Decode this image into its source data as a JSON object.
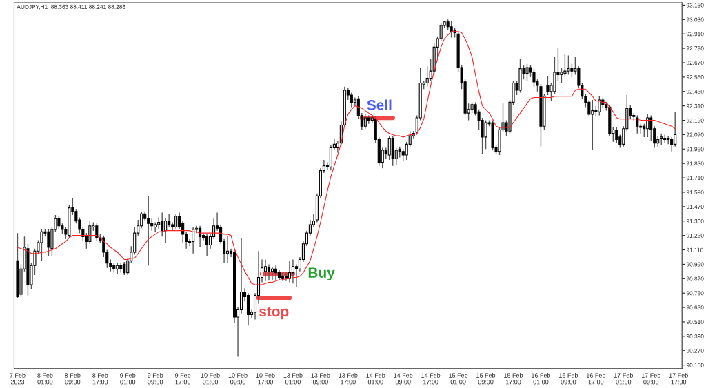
{
  "chart_data": {
    "type": "candlestick",
    "title": "AUDJPY,H1  88.363 88.411 88.241 88.286",
    "categories": [
      "7 Feb 2023",
      null,
      null,
      null,
      null,
      null,
      null,
      null,
      "8 Feb 01:00",
      null,
      null,
      null,
      null,
      null,
      null,
      null,
      "8 Feb 09:00",
      null,
      null,
      null,
      null,
      null,
      null,
      null,
      "8 Feb 17:00",
      null,
      null,
      null,
      null,
      null,
      null,
      null,
      "9 Feb 01:00",
      null,
      null,
      null,
      null,
      null,
      null,
      null,
      "9 Feb 09:00",
      null,
      null,
      null,
      null,
      null,
      null,
      null,
      "9 Feb 17:00",
      null,
      null,
      null,
      null,
      null,
      null,
      null,
      "10 Feb 01:00",
      null,
      null,
      null,
      null,
      null,
      null,
      null,
      "10 Feb 09:00",
      null,
      null,
      null,
      null,
      null,
      null,
      null,
      "10 Feb 17:00",
      null,
      null,
      null,
      null,
      null,
      null,
      null,
      "13 Feb 01:00",
      null,
      null,
      null,
      null,
      null,
      null,
      null,
      "13 Feb 09:00",
      null,
      null,
      null,
      null,
      null,
      null,
      null,
      "13 Feb 17:00",
      null,
      null,
      null,
      null,
      null,
      null,
      null,
      "14 Feb 01:00",
      null,
      null,
      null,
      null,
      null,
      null,
      null,
      "14 Feb 09:00",
      null,
      null,
      null,
      null,
      null,
      null,
      null,
      "14 Feb 17:00",
      null,
      null,
      null,
      null,
      null,
      null,
      null,
      "15 Feb 01:00",
      null,
      null,
      null,
      null,
      null,
      null,
      null,
      "15 Feb 09:00",
      null,
      null,
      null,
      null,
      null,
      null,
      null,
      "15 Feb 17:00",
      null,
      null,
      null,
      null,
      null,
      null,
      null,
      "16 Feb 01:00",
      null,
      null,
      null,
      null,
      null,
      null,
      null,
      "16 Feb 09:00",
      null,
      null,
      null,
      null,
      null,
      null,
      null,
      "16 Feb 17:00",
      null,
      null,
      null,
      null,
      null,
      null,
      null,
      "17 Feb 01:00",
      null,
      null,
      null,
      null,
      null,
      null,
      null,
      "17 Feb 09:00",
      null,
      null,
      null,
      null,
      null,
      null,
      null,
      "17 Feb 17:00"
    ],
    "ohlc": [
      [
        91.02,
        91.25,
        90.71,
        90.72
      ],
      [
        90.74,
        90.99,
        90.72,
        90.95
      ],
      [
        90.95,
        91.22,
        90.93,
        91.13
      ],
      [
        91.12,
        91.16,
        90.73,
        90.82
      ],
      [
        90.82,
        91.0,
        90.78,
        90.98
      ],
      [
        90.98,
        91.12,
        90.9,
        91.1
      ],
      [
        91.1,
        91.19,
        91.08,
        91.17
      ],
      [
        91.17,
        91.28,
        91.02,
        91.26
      ],
      [
        91.26,
        91.28,
        91.22,
        91.25
      ],
      [
        91.26,
        91.28,
        91.06,
        91.13
      ],
      [
        91.12,
        91.3,
        91.06,
        91.28
      ],
      [
        91.28,
        91.4,
        91.26,
        91.37
      ],
      [
        91.37,
        91.39,
        91.28,
        91.31
      ],
      [
        91.31,
        91.33,
        91.24,
        91.28
      ],
      [
        91.28,
        91.3,
        91.2,
        91.24
      ],
      [
        91.23,
        91.48,
        91.21,
        91.46
      ],
      [
        91.46,
        91.54,
        91.4,
        91.43
      ],
      [
        91.43,
        91.45,
        91.33,
        91.35
      ],
      [
        91.36,
        91.38,
        91.25,
        91.28
      ],
      [
        91.28,
        91.3,
        91.18,
        91.22
      ],
      [
        91.23,
        91.25,
        91.12,
        91.18
      ],
      [
        91.18,
        91.35,
        91.16,
        91.31
      ],
      [
        91.3,
        91.34,
        91.27,
        91.31
      ],
      [
        91.31,
        91.33,
        91.18,
        91.21
      ],
      [
        91.21,
        91.24,
        91.17,
        91.19
      ],
      [
        91.21,
        91.23,
        91.05,
        91.09
      ],
      [
        91.09,
        91.11,
        90.96,
        91.0
      ],
      [
        91.0,
        91.03,
        90.93,
        90.97
      ],
      [
        90.98,
        91.0,
        90.92,
        90.95
      ],
      [
        90.95,
        91.0,
        90.91,
        90.98
      ],
      [
        90.98,
        91.0,
        90.92,
        90.95
      ],
      [
        90.99,
        91.01,
        90.9,
        90.92
      ],
      [
        90.92,
        91.04,
        90.9,
        91.02
      ],
      [
        91.02,
        91.14,
        91.0,
        91.09
      ],
      [
        91.09,
        91.3,
        91.07,
        91.25
      ],
      [
        91.25,
        91.36,
        91.23,
        91.31
      ],
      [
        91.31,
        91.43,
        91.29,
        91.41
      ],
      [
        91.41,
        91.43,
        91.35,
        91.37
      ],
      [
        91.37,
        91.56,
        90.98,
        91.33
      ],
      [
        91.33,
        91.37,
        91.27,
        91.31
      ],
      [
        91.3,
        91.34,
        91.26,
        91.32
      ],
      [
        91.32,
        91.38,
        91.28,
        91.34
      ],
      [
        91.35,
        91.42,
        91.22,
        91.27
      ],
      [
        91.27,
        91.37,
        91.17,
        91.35
      ],
      [
        91.35,
        91.41,
        91.3,
        91.32
      ],
      [
        91.32,
        91.34,
        91.27,
        91.3
      ],
      [
        91.3,
        91.41,
        91.28,
        91.39
      ],
      [
        91.39,
        91.42,
        91.28,
        91.3
      ],
      [
        91.33,
        91.35,
        91.17,
        91.24
      ],
      [
        91.24,
        91.26,
        91.12,
        91.18
      ],
      [
        91.18,
        91.2,
        91.14,
        91.17
      ],
      [
        91.18,
        91.3,
        91.08,
        91.28
      ],
      [
        91.28,
        91.31,
        91.25,
        91.29
      ],
      [
        91.29,
        91.31,
        91.13,
        91.22
      ],
      [
        91.23,
        91.25,
        91.19,
        91.21
      ],
      [
        91.22,
        91.24,
        91.06,
        91.15
      ],
      [
        91.15,
        91.24,
        91.12,
        91.22
      ],
      [
        91.22,
        91.37,
        91.2,
        91.31
      ],
      [
        91.31,
        91.42,
        91.27,
        91.29
      ],
      [
        91.3,
        91.32,
        91.16,
        91.18
      ],
      [
        91.18,
        91.2,
        91.0,
        91.08
      ],
      [
        91.08,
        91.23,
        91.0,
        91.1
      ],
      [
        91.1,
        91.12,
        91.05,
        91.08
      ],
      [
        91.09,
        91.11,
        90.5,
        90.55
      ],
      [
        90.55,
        90.63,
        90.22,
        90.61
      ],
      [
        90.61,
        91.21,
        90.58,
        90.76
      ],
      [
        90.76,
        90.79,
        90.68,
        90.72
      ],
      [
        90.73,
        90.75,
        90.48,
        90.57
      ],
      [
        90.57,
        90.61,
        90.54,
        90.59
      ],
      [
        90.59,
        90.75,
        90.53,
        90.73
      ],
      [
        90.73,
        91.1,
        90.66,
        90.88
      ],
      [
        90.88,
        91.03,
        90.84,
        90.96
      ],
      [
        90.93,
        91.03,
        90.85,
        90.97
      ],
      [
        90.96,
        90.99,
        90.86,
        90.93
      ],
      [
        90.93,
        90.97,
        90.86,
        90.95
      ],
      [
        90.95,
        90.98,
        90.86,
        90.92
      ],
      [
        90.92,
        90.94,
        90.86,
        90.88
      ],
      [
        90.89,
        90.92,
        90.85,
        90.87
      ],
      [
        90.89,
        90.92,
        90.85,
        90.87
      ],
      [
        90.87,
        91.02,
        90.84,
        90.92
      ],
      [
        90.92,
        91.03,
        90.83,
        90.97
      ],
      [
        90.97,
        90.99,
        90.8,
        90.95
      ],
      [
        90.95,
        91.05,
        90.93,
        91.03
      ],
      [
        91.03,
        91.18,
        91.01,
        91.16
      ],
      [
        91.16,
        91.27,
        91.14,
        91.25
      ],
      [
        91.25,
        91.36,
        91.23,
        91.32
      ],
      [
        91.32,
        91.41,
        91.3,
        91.35
      ],
      [
        91.36,
        91.58,
        91.34,
        91.56
      ],
      [
        91.56,
        91.79,
        91.54,
        91.77
      ],
      [
        91.77,
        91.86,
        91.75,
        91.81
      ],
      [
        91.81,
        91.84,
        91.78,
        91.8
      ],
      [
        91.8,
        91.98,
        91.78,
        91.96
      ],
      [
        91.96,
        92.04,
        91.94,
        91.99
      ],
      [
        91.96,
        92.02,
        91.92,
        92.0
      ],
      [
        92.0,
        92.18,
        91.98,
        92.15
      ],
      [
        92.15,
        92.47,
        92.13,
        92.44
      ],
      [
        92.44,
        92.46,
        92.36,
        92.4
      ],
      [
        92.4,
        92.42,
        92.3,
        92.34
      ],
      [
        92.34,
        92.38,
        92.31,
        92.36
      ],
      [
        92.37,
        92.39,
        92.2,
        92.23
      ],
      [
        92.23,
        92.25,
        92.11,
        92.14
      ],
      [
        92.14,
        92.24,
        92.12,
        92.21
      ],
      [
        92.21,
        92.23,
        92.16,
        92.19
      ],
      [
        92.19,
        92.23,
        92.17,
        92.21
      ],
      [
        92.2,
        92.22,
        92.0,
        92.03
      ],
      [
        92.03,
        92.05,
        91.81,
        91.84
      ],
      [
        91.84,
        91.96,
        91.79,
        91.94
      ],
      [
        91.94,
        91.96,
        91.87,
        91.91
      ],
      [
        91.9,
        92.06,
        91.86,
        92.04
      ],
      [
        92.04,
        92.06,
        91.81,
        91.87
      ],
      [
        91.87,
        91.96,
        91.82,
        91.94
      ],
      [
        91.95,
        91.97,
        91.88,
        91.93
      ],
      [
        91.93,
        91.95,
        91.85,
        91.9
      ],
      [
        91.9,
        92.01,
        91.86,
        91.99
      ],
      [
        91.99,
        92.1,
        91.97,
        92.06
      ],
      [
        92.06,
        92.1,
        92.04,
        92.08
      ],
      [
        92.09,
        92.23,
        92.07,
        92.21
      ],
      [
        92.21,
        92.63,
        92.19,
        92.5
      ],
      [
        92.49,
        92.52,
        92.45,
        92.5
      ],
      [
        92.5,
        92.64,
        92.47,
        92.54
      ],
      [
        92.54,
        92.7,
        92.52,
        92.6
      ],
      [
        92.6,
        92.83,
        92.58,
        92.8
      ],
      [
        92.8,
        92.89,
        92.7,
        92.87
      ],
      [
        92.87,
        93.0,
        92.85,
        92.98
      ],
      [
        92.98,
        93.02,
        92.96,
        93.01
      ],
      [
        93.01,
        93.03,
        92.94,
        92.97
      ],
      [
        92.97,
        93.02,
        92.88,
        92.93
      ],
      [
        92.94,
        92.96,
        92.88,
        92.92
      ],
      [
        92.91,
        92.93,
        92.59,
        92.63
      ],
      [
        92.63,
        92.65,
        92.45,
        92.5
      ],
      [
        92.51,
        92.53,
        92.23,
        92.25
      ],
      [
        92.25,
        92.33,
        92.19,
        92.28
      ],
      [
        92.28,
        92.34,
        92.25,
        92.32
      ],
      [
        92.32,
        92.34,
        92.23,
        92.25
      ],
      [
        92.26,
        92.28,
        92.11,
        92.19
      ],
      [
        92.19,
        92.21,
        91.91,
        92.05
      ],
      [
        92.05,
        92.19,
        91.95,
        92.17
      ],
      [
        92.17,
        92.19,
        92.14,
        92.16
      ],
      [
        92.17,
        92.19,
        91.94,
        91.96
      ],
      [
        91.96,
        91.98,
        91.91,
        91.93
      ],
      [
        91.93,
        92.13,
        91.9,
        92.11
      ],
      [
        92.11,
        92.33,
        92.09,
        92.17
      ],
      [
        92.17,
        92.19,
        92.06,
        92.1
      ],
      [
        92.1,
        92.36,
        92.08,
        92.34
      ],
      [
        92.34,
        92.52,
        92.32,
        92.5
      ],
      [
        92.5,
        92.52,
        92.4,
        92.44
      ],
      [
        92.44,
        92.7,
        92.42,
        92.62
      ],
      [
        92.62,
        92.65,
        92.53,
        92.58
      ],
      [
        92.58,
        92.66,
        92.52,
        92.63
      ],
      [
        92.63,
        92.65,
        92.55,
        92.59
      ],
      [
        92.59,
        92.62,
        92.47,
        92.51
      ],
      [
        92.51,
        92.53,
        92.43,
        92.48
      ],
      [
        92.47,
        92.49,
        91.97,
        92.14
      ],
      [
        92.14,
        92.41,
        92.11,
        92.39
      ],
      [
        92.48,
        92.56,
        92.4,
        92.43
      ],
      [
        92.43,
        92.5,
        92.35,
        92.48
      ],
      [
        92.43,
        92.72,
        92.41,
        92.59
      ],
      [
        92.59,
        92.79,
        92.52,
        92.57
      ],
      [
        92.57,
        92.63,
        92.5,
        92.59
      ],
      [
        92.58,
        92.74,
        92.55,
        92.6
      ],
      [
        92.6,
        92.73,
        92.57,
        92.62
      ],
      [
        92.62,
        92.66,
        92.55,
        92.6
      ],
      [
        92.6,
        92.72,
        92.57,
        92.62
      ],
      [
        92.62,
        92.64,
        92.46,
        92.48
      ],
      [
        92.48,
        92.5,
        92.37,
        92.39
      ],
      [
        92.39,
        92.41,
        92.3,
        92.34
      ],
      [
        92.34,
        92.36,
        92.22,
        92.24
      ],
      [
        92.24,
        92.36,
        91.94,
        92.27
      ],
      [
        92.27,
        92.31,
        92.22,
        92.26
      ],
      [
        92.26,
        92.39,
        92.23,
        92.36
      ],
      [
        92.36,
        92.38,
        92.29,
        92.32
      ],
      [
        92.32,
        92.34,
        92.27,
        92.3
      ],
      [
        92.3,
        92.32,
        92.06,
        92.08
      ],
      [
        92.08,
        92.13,
        92.01,
        92.11
      ],
      [
        92.11,
        92.13,
        92.0,
        92.03
      ],
      [
        92.05,
        92.07,
        91.96,
        91.99
      ],
      [
        91.99,
        92.14,
        91.97,
        92.12
      ],
      [
        92.12,
        92.4,
        92.1,
        92.29
      ],
      [
        92.29,
        92.32,
        92.2,
        92.23
      ],
      [
        92.23,
        92.25,
        92.19,
        92.22
      ],
      [
        92.21,
        92.23,
        92.08,
        92.14
      ],
      [
        92.14,
        92.16,
        92.08,
        92.13
      ],
      [
        92.14,
        92.16,
        92.05,
        92.12
      ],
      [
        92.12,
        92.24,
        92.05,
        92.21
      ],
      [
        92.21,
        92.23,
        92.02,
        92.11
      ],
      [
        92.12,
        92.14,
        91.96,
        92.0
      ],
      [
        92.0,
        92.06,
        91.97,
        92.03
      ],
      [
        92.04,
        92.08,
        91.98,
        92.05
      ],
      [
        92.04,
        92.07,
        92.0,
        92.03
      ],
      [
        92.04,
        92.06,
        91.99,
        92.03
      ],
      [
        92.03,
        92.05,
        91.93,
        91.99
      ],
      [
        91.99,
        92.26,
        91.97,
        92.07
      ],
      null
    ],
    "series": [
      {
        "type": "line",
        "color": "#ff2020",
        "values": [
          91.13,
          91.12,
          91.11,
          91.1,
          91.08,
          91.08,
          91.08,
          91.09,
          91.09,
          91.1,
          91.11,
          91.12,
          91.14,
          91.16,
          91.18,
          91.21,
          91.23,
          91.23,
          91.23,
          91.23,
          91.23,
          91.23,
          91.23,
          91.23,
          91.21,
          91.18,
          91.16,
          91.13,
          91.11,
          91.09,
          91.06,
          91.03,
          91.03,
          91.04,
          91.04,
          91.08,
          91.12,
          91.16,
          91.2,
          91.22,
          91.24,
          91.26,
          91.26,
          91.27,
          91.27,
          91.27,
          91.27,
          91.27,
          91.27,
          91.27,
          91.27,
          91.26,
          91.26,
          91.25,
          91.25,
          91.25,
          91.25,
          91.25,
          91.25,
          91.25,
          91.24,
          91.24,
          91.23,
          91.12,
          91.05,
          90.99,
          90.93,
          90.88,
          90.83,
          90.82,
          90.82,
          90.82,
          90.83,
          90.84,
          90.84,
          90.85,
          90.86,
          90.86,
          90.87,
          90.87,
          90.88,
          90.88,
          90.89,
          90.92,
          90.97,
          91.02,
          91.12,
          91.22,
          91.34,
          91.47,
          91.6,
          91.72,
          91.81,
          91.9,
          92.0,
          92.15,
          92.24,
          92.28,
          92.31,
          92.3,
          92.29,
          92.27,
          92.25,
          92.23,
          92.21,
          92.17,
          92.13,
          92.1,
          92.08,
          92.07,
          92.06,
          92.06,
          92.05,
          92.06,
          92.07,
          92.07,
          92.08,
          92.13,
          92.2,
          92.34,
          92.48,
          92.6,
          92.7,
          92.8,
          92.87,
          92.9,
          92.93,
          92.93,
          92.93,
          92.92,
          92.87,
          92.8,
          92.72,
          92.57,
          92.43,
          92.31,
          92.28,
          92.25,
          92.2,
          92.14,
          92.13,
          92.13,
          92.13,
          92.13,
          92.17,
          92.21,
          92.25,
          92.29,
          92.33,
          92.37,
          92.38,
          92.38,
          92.38,
          92.38,
          92.38,
          92.38,
          92.39,
          92.39,
          92.39,
          92.39,
          92.39,
          92.39,
          92.44,
          92.45,
          92.45,
          92.45,
          92.42,
          92.39,
          92.35,
          92.35,
          92.34,
          92.34,
          92.3,
          92.26,
          92.21,
          92.2,
          92.2,
          92.2,
          92.2,
          92.2,
          92.2,
          92.19,
          92.19,
          92.19,
          92.19,
          92.19,
          92.18,
          92.17,
          92.16,
          92.15,
          92.14,
          92.12,
          null
        ]
      },
      {
        "type": "line",
        "color": "#f04848",
        "values": [
          null,
          null,
          null,
          null,
          null,
          null,
          null,
          null,
          null,
          null,
          null,
          null,
          null,
          null,
          null,
          null,
          null,
          null,
          null,
          null,
          null,
          null,
          null,
          null,
          null,
          null,
          null,
          null,
          null,
          null,
          null,
          null,
          null,
          null,
          null,
          null,
          null,
          null,
          null,
          null,
          null,
          null,
          null,
          null,
          null,
          null,
          null,
          null,
          null,
          null,
          null,
          null,
          null,
          null,
          null,
          null,
          null,
          null,
          null,
          null,
          null,
          null,
          null,
          null,
          null,
          null,
          null,
          null,
          null,
          null,
          null,
          null,
          null,
          null,
          null,
          null,
          null,
          null,
          null,
          null,
          null,
          null,
          null,
          null,
          null,
          null,
          null,
          null,
          null,
          null,
          null,
          null,
          null,
          null,
          null,
          null,
          null,
          null,
          null,
          null,
          92.21,
          92.21,
          92.21,
          92.21,
          92.21,
          92.21,
          92.21,
          92.21,
          92.21,
          92.21,
          null,
          null,
          null,
          null,
          null,
          null,
          null,
          null,
          null,
          null,
          null,
          null,
          null,
          null,
          null,
          null,
          null,
          null,
          null,
          null,
          null,
          null,
          null,
          null,
          null,
          null,
          null,
          null,
          null,
          null,
          null,
          null,
          null,
          null,
          null,
          null,
          null,
          null,
          null,
          null,
          null,
          null,
          null,
          null,
          null,
          null,
          null,
          null,
          null,
          null,
          null,
          null,
          null,
          null,
          null,
          null,
          null,
          null,
          null,
          null,
          null,
          null,
          null,
          null,
          null,
          null,
          null,
          null,
          null,
          null,
          null,
          null,
          null,
          null,
          null,
          null,
          null,
          null,
          null,
          null,
          null,
          null,
          null
        ]
      },
      {
        "type": "line",
        "color": "#f04848",
        "values": [
          null,
          null,
          null,
          null,
          null,
          null,
          null,
          null,
          null,
          null,
          null,
          null,
          null,
          null,
          null,
          null,
          null,
          null,
          null,
          null,
          null,
          null,
          null,
          null,
          null,
          null,
          null,
          null,
          null,
          null,
          null,
          null,
          null,
          null,
          null,
          null,
          null,
          null,
          null,
          null,
          null,
          null,
          null,
          null,
          null,
          null,
          null,
          null,
          null,
          null,
          null,
          null,
          null,
          null,
          null,
          null,
          null,
          null,
          null,
          null,
          null,
          null,
          null,
          null,
          null,
          null,
          null,
          null,
          null,
          null,
          null,
          90.91,
          90.91,
          90.91,
          90.91,
          90.91,
          90.91,
          90.91,
          90.91,
          90.91,
          90.91,
          null,
          null,
          null,
          null,
          null,
          null,
          null,
          null,
          null,
          null,
          null,
          null,
          null,
          null,
          null,
          null,
          null,
          null,
          null,
          null,
          null,
          null,
          null,
          null,
          null,
          null,
          null,
          null,
          null,
          null,
          null,
          null,
          null,
          null,
          null,
          null,
          null,
          null,
          null,
          null,
          null,
          null,
          null,
          null,
          null,
          null,
          null,
          null,
          null,
          null,
          null,
          null,
          null,
          null,
          null,
          null,
          null,
          null,
          null,
          null,
          null,
          null,
          null,
          null,
          null,
          null,
          null,
          null,
          null,
          null,
          null,
          null,
          null,
          null,
          null,
          null,
          null,
          null,
          null,
          null,
          null,
          null,
          null,
          null,
          null,
          null,
          null,
          null,
          null,
          null,
          null,
          null,
          null,
          null,
          null,
          null,
          null,
          null,
          null,
          null,
          null,
          null,
          null,
          null,
          null,
          null,
          null,
          null,
          null,
          null,
          null,
          null
        ]
      },
      {
        "type": "line",
        "color": "#f04848",
        "values": [
          null,
          null,
          null,
          null,
          null,
          null,
          null,
          null,
          null,
          null,
          null,
          null,
          null,
          null,
          null,
          null,
          null,
          null,
          null,
          null,
          null,
          null,
          null,
          null,
          null,
          null,
          null,
          null,
          null,
          null,
          null,
          null,
          null,
          null,
          null,
          null,
          null,
          null,
          null,
          null,
          null,
          null,
          null,
          null,
          null,
          null,
          null,
          null,
          null,
          null,
          null,
          null,
          null,
          null,
          null,
          null,
          null,
          null,
          null,
          null,
          null,
          null,
          null,
          null,
          null,
          null,
          null,
          null,
          null,
          null,
          90.71,
          90.71,
          90.71,
          90.71,
          90.71,
          90.71,
          90.71,
          90.71,
          90.71,
          90.71,
          null,
          null,
          null,
          null,
          null,
          null,
          null,
          null,
          null,
          null,
          null,
          null,
          null,
          null,
          null,
          null,
          null,
          null,
          null,
          null,
          null,
          null,
          null,
          null,
          null,
          null,
          null,
          null,
          null,
          null,
          null,
          null,
          null,
          null,
          null,
          null,
          null,
          null,
          null,
          null,
          null,
          null,
          null,
          null,
          null,
          null,
          null,
          null,
          null,
          null,
          null,
          null,
          null,
          null,
          null,
          null,
          null,
          null,
          null,
          null,
          null,
          null,
          null,
          null,
          null,
          null,
          null,
          null,
          null,
          null,
          null,
          null,
          null,
          null,
          null,
          null,
          null,
          null,
          null,
          null,
          null,
          null,
          null,
          null,
          null,
          null,
          null,
          null,
          null,
          null,
          null,
          null,
          null,
          null,
          null,
          null,
          null,
          null,
          null,
          null,
          null,
          null,
          null,
          null,
          null,
          null,
          null,
          null,
          null,
          null,
          null,
          null,
          null
        ]
      }
    ],
    "annotations": [
      "Sell",
      "Buy",
      "stop"
    ],
    "ylim": [
      90.12,
      93.17
    ],
    "yticks": [
      {
        "value": 90.15,
        "label": "90.150"
      },
      {
        "value": 90.27,
        "label": "90.270"
      },
      {
        "value": 90.39,
        "label": "90.390"
      },
      {
        "value": 90.51,
        "label": "90.510"
      },
      {
        "value": 90.63,
        "label": "90.630"
      },
      {
        "value": 90.75,
        "label": "90.750"
      },
      {
        "value": 90.87,
        "label": "90.870"
      },
      {
        "value": 90.99,
        "label": "90.990"
      },
      {
        "value": 91.11,
        "label": "91.110"
      },
      {
        "value": 91.23,
        "label": "91.230"
      },
      {
        "value": 91.35,
        "label": "91.350"
      },
      {
        "value": 91.47,
        "label": "91.470"
      },
      {
        "value": 91.59,
        "label": "91.590"
      },
      {
        "value": 91.71,
        "label": "91.710"
      },
      {
        "value": 91.83,
        "label": "91.830"
      },
      {
        "value": 91.95,
        "label": "91.950"
      },
      {
        "value": 92.07,
        "label": "92.070"
      },
      {
        "value": 92.19,
        "label": "92.190"
      },
      {
        "value": 92.31,
        "label": "92.310"
      },
      {
        "value": 92.43,
        "label": "92.430"
      },
      {
        "value": 92.55,
        "label": "92.550"
      },
      {
        "value": 92.67,
        "label": "92.670"
      },
      {
        "value": 92.79,
        "label": "92.790"
      },
      {
        "value": 92.91,
        "label": "92.910"
      },
      {
        "value": 93.03,
        "label": "93.030"
      },
      {
        "value": 93.15,
        "label": "93.150"
      }
    ],
    "grid": false,
    "legend": false
  }
}
